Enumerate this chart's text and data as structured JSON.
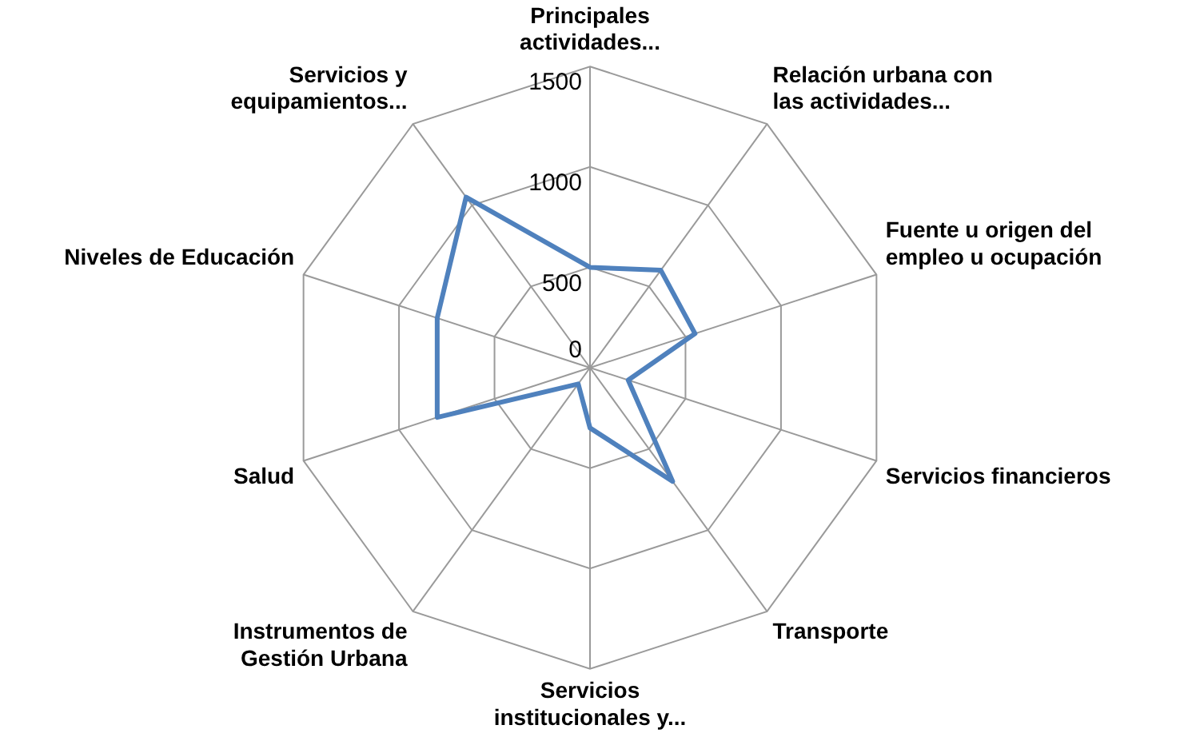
{
  "chart_data": {
    "type": "radar",
    "categories": [
      "Principales actividades...",
      "Relación urbana con las actividades...",
      "Fuente u origen del empleo u ocupación",
      "Servicios financieros",
      "Transporte",
      "Servicios institucionales y...",
      "Instrumentos de Gestión Urbana",
      "Salud",
      "Niveles de Educación",
      "Servicios y equipamientos..."
    ],
    "series": [
      {
        "color": "#4f81bd",
        "values": [
          500,
          600,
          550,
          200,
          700,
          300,
          100,
          800,
          800,
          1050
        ]
      }
    ],
    "ylim": [
      0,
      1500
    ],
    "yticks": [
      0,
      500,
      1000,
      1500
    ],
    "grid": true,
    "legend": false,
    "marker": "none"
  }
}
